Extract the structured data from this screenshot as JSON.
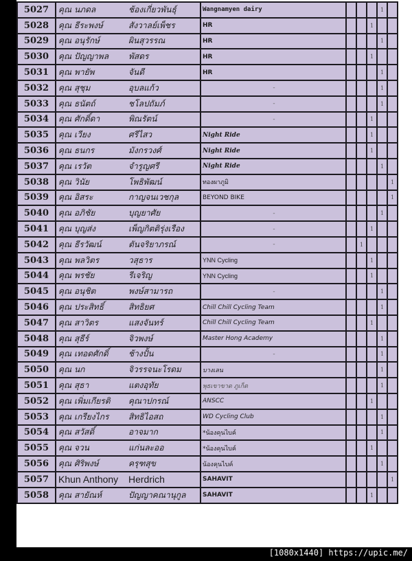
{
  "rows": [
    {
      "num": "5027",
      "first": "คุณ นภดล",
      "last": "ช้องเกี่ยวพันธุ์",
      "team": "Wangnamyen dairy",
      "team_style": "mono",
      "mark_col": 3
    },
    {
      "num": "5028",
      "first": "คุณ ธีระพงษ์",
      "last": "สังวาลย์เพ็ชร",
      "team": "HR",
      "team_style": "bold",
      "mark_col": 2
    },
    {
      "num": "5029",
      "first": "คุณ อนุรักษ์",
      "last": "ผินสุวรรณ",
      "team": "HR",
      "team_style": "bold",
      "mark_col": 3
    },
    {
      "num": "5030",
      "first": "คุณ ปัญญาพล",
      "last": "พัสดร",
      "team": "HR",
      "team_style": "bold",
      "mark_col": 2
    },
    {
      "num": "5031",
      "first": "คุณ พายัพ",
      "last": "จันดี",
      "team": "HR",
      "team_style": "bold",
      "mark_col": 3
    },
    {
      "num": "5032",
      "first": "คุณ สุชุม",
      "last": "อุบลแก้ว",
      "team": "-",
      "team_style": "dash",
      "mark_col": 3
    },
    {
      "num": "5033",
      "first": "คุณ ธนัตถ์",
      "last": "ชโลปถัมภ์",
      "team": "-",
      "team_style": "dash",
      "mark_col": 3
    },
    {
      "num": "5034",
      "first": "คุณ ศักดิ์ดา",
      "last": "พิณรัตน์",
      "team": "-",
      "team_style": "dash",
      "mark_col": 2
    },
    {
      "num": "5035",
      "first": "คุณ เวียง",
      "last": "ศรีไสว",
      "team": "Night Ride",
      "team_style": "script",
      "mark_col": 2
    },
    {
      "num": "5036",
      "first": "คุณ ธนกร",
      "last": "มังกรวงศ์",
      "team": "Night Ride",
      "team_style": "script",
      "mark_col": 2
    },
    {
      "num": "5037",
      "first": "คุณ เรวัต",
      "last": "จำรูญศรี",
      "team": "Night Ride",
      "team_style": "script",
      "mark_col": 3
    },
    {
      "num": "5038",
      "first": "คุณ วินัย",
      "last": "โพธิพัฒน์",
      "team": "ทองผาภูมิ",
      "team_style": "plain",
      "mark_col": 4
    },
    {
      "num": "5039",
      "first": "คุณ อิสระ",
      "last": "กาญจนเวชกุล",
      "team": "BEYOND BIKE",
      "team_style": "small",
      "mark_col": 4
    },
    {
      "num": "5040",
      "first": "คุณ อภิชัย",
      "last": "บุญยาศัย",
      "team": "-",
      "team_style": "dash",
      "mark_col": 3
    },
    {
      "num": "5041",
      "first": "คุณ บุญส่ง",
      "last": "เพ็ญกิตติรุ่งเรือง",
      "team": "-",
      "team_style": "dash",
      "mark_col": 2
    },
    {
      "num": "5042",
      "first": "คุณ ธีรวัฒน์",
      "last": "ตันจริยาภรณ์",
      "team": "-",
      "team_style": "dash",
      "mark_col": 1
    },
    {
      "num": "5043",
      "first": "คุณ พลวิตร",
      "last": "วสุธาร",
      "team": "YNN Cycling",
      "team_style": "large",
      "mark_col": 2
    },
    {
      "num": "5044",
      "first": "คุณ พรชัย",
      "last": "รีเจริญ",
      "team": "YNN Cycling",
      "team_style": "large",
      "mark_col": 2
    },
    {
      "num": "5045",
      "first": "คุณ อนุชิต",
      "last": "พงษ์สามารถ",
      "team": "-",
      "team_style": "dash",
      "mark_col": 3
    },
    {
      "num": "5046",
      "first": "คุณ ประสิทธิ์",
      "last": "สิทธิยศ",
      "team": "Chill Chill Cycling Team",
      "team_style": "italic",
      "mark_col": 3
    },
    {
      "num": "5047",
      "first": "คุณ สาวิตร",
      "last": "แสงจันทร์",
      "team": "Chill Chill Cycling Team",
      "team_style": "italic",
      "mark_col": 2
    },
    {
      "num": "5048",
      "first": "คุณ สุธีร์",
      "last": "จิวพงษ์",
      "team": "Master Hong Academy",
      "team_style": "italic",
      "mark_col": 3
    },
    {
      "num": "5049",
      "first": "คุณ เทอดศักดิ์",
      "last": "ช้างปั้น",
      "team": "-",
      "team_style": "dash",
      "mark_col": 3
    },
    {
      "num": "5050",
      "first": "คุณ นก",
      "last": "จิวรรจนะโรดม",
      "team": "บางเลน",
      "team_style": "italic",
      "mark_col": 3
    },
    {
      "num": "5051",
      "first": "คุณ สุธา",
      "last": "แตงอุทัย",
      "team": "พุธเขาขาด ภูเก็ต",
      "team_style": "italicgray",
      "mark_col": 3
    },
    {
      "num": "5052",
      "first": "คุณ เพิ่มเกียรติ",
      "last": "คุณาปกรณ์",
      "team": "ANSCC",
      "team_style": "italic",
      "mark_col": 2
    },
    {
      "num": "5053",
      "first": "คุณ เกรียงไกร",
      "last": "สิทธิไอสถ",
      "team": "WD Cycling Club",
      "team_style": "italic",
      "mark_col": 3
    },
    {
      "num": "5054",
      "first": "คุณ สวัสดิ์",
      "last": "อาจมาก",
      "team": "*น้องคุนไบค์",
      "team_style": "plain",
      "mark_col": 3
    },
    {
      "num": "5055",
      "first": "คุณ จวน",
      "last": "แก่นละออ",
      "team": "*น้องคุนไบค์",
      "team_style": "plain",
      "mark_col": 2
    },
    {
      "num": "5056",
      "first": "คุณ ศิริพงษ์",
      "last": "ครุฑสุข",
      "team": "น้องคุนไบค์",
      "team_style": "plain",
      "mark_col": 3
    },
    {
      "num": "5057",
      "first": "Khun Anthony",
      "last": "Herdrich",
      "team": "SAHAVIT",
      "team_style": "bold",
      "mark_col": 4,
      "latin": true
    },
    {
      "num": "5058",
      "first": "คุณ สายัณห์",
      "last": "ปัญญาคณานุกูล",
      "team": "SAHAVIT",
      "team_style": "bold",
      "mark_col": 2
    }
  ],
  "mark_value": "1",
  "footer": "[1080x1440] https://upic.me/"
}
